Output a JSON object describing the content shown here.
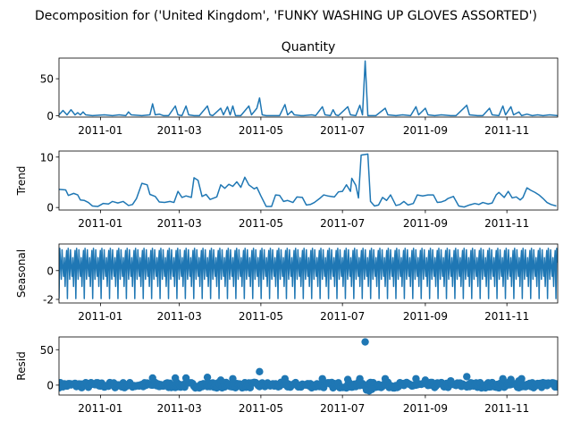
{
  "figure_title": "Decomposition for ('United Kingdom', 'FUNKY WASHING UP GLOVES ASSORTED')",
  "line_color": "#1f77b4",
  "chart_data": [
    {
      "type": "line",
      "panel": "observed",
      "title": "Quantity",
      "ylabel": "",
      "ylim": [
        -2,
        78
      ],
      "yticks": [
        0,
        50
      ],
      "xticks": [
        "2011-01",
        "2011-03",
        "2011-05",
        "2011-07",
        "2011-09",
        "2011-11"
      ],
      "xlim": [
        "2010-12-01",
        "2011-12-09"
      ],
      "grid": false,
      "series": [
        {
          "points": [
            [
              "2010-12-01",
              1
            ],
            [
              "2010-12-04",
              7
            ],
            [
              "2010-12-07",
              1
            ],
            [
              "2010-12-10",
              8
            ],
            [
              "2010-12-13",
              1
            ],
            [
              "2010-12-15",
              4
            ],
            [
              "2010-12-17",
              1
            ],
            [
              "2010-12-19",
              5
            ],
            [
              "2010-12-21",
              1
            ],
            [
              "2010-12-26",
              0
            ],
            [
              "2011-01-04",
              1
            ],
            [
              "2011-01-10",
              0
            ],
            [
              "2011-01-15",
              1
            ],
            [
              "2011-01-20",
              0
            ],
            [
              "2011-01-22",
              5
            ],
            [
              "2011-01-24",
              1
            ],
            [
              "2011-02-01",
              0
            ],
            [
              "2011-02-07",
              1
            ],
            [
              "2011-02-09",
              16
            ],
            [
              "2011-02-11",
              1
            ],
            [
              "2011-02-14",
              2
            ],
            [
              "2011-02-17",
              0
            ],
            [
              "2011-02-21",
              0
            ],
            [
              "2011-02-26",
              13
            ],
            [
              "2011-02-28",
              1
            ],
            [
              "2011-03-03",
              0
            ],
            [
              "2011-03-06",
              13
            ],
            [
              "2011-03-08",
              1
            ],
            [
              "2011-03-12",
              0
            ],
            [
              "2011-03-16",
              0
            ],
            [
              "2011-03-22",
              13
            ],
            [
              "2011-03-24",
              1
            ],
            [
              "2011-03-26",
              0
            ],
            [
              "2011-04-01",
              10
            ],
            [
              "2011-04-03",
              1
            ],
            [
              "2011-04-06",
              12
            ],
            [
              "2011-04-08",
              1
            ],
            [
              "2011-04-10",
              13
            ],
            [
              "2011-04-12",
              0
            ],
            [
              "2011-04-16",
              0
            ],
            [
              "2011-04-22",
              13
            ],
            [
              "2011-04-24",
              1
            ],
            [
              "2011-04-28",
              10
            ],
            [
              "2011-04-30",
              24
            ],
            [
              "2011-05-02",
              1
            ],
            [
              "2011-05-05",
              0
            ],
            [
              "2011-05-10",
              0
            ],
            [
              "2011-05-15",
              0
            ],
            [
              "2011-05-19",
              15
            ],
            [
              "2011-05-21",
              1
            ],
            [
              "2011-05-24",
              6
            ],
            [
              "2011-05-26",
              1
            ],
            [
              "2011-05-31",
              0
            ],
            [
              "2011-06-02",
              0
            ],
            [
              "2011-06-08",
              1
            ],
            [
              "2011-06-11",
              0
            ],
            [
              "2011-06-16",
              12
            ],
            [
              "2011-06-18",
              1
            ],
            [
              "2011-06-22",
              0
            ],
            [
              "2011-06-24",
              8
            ],
            [
              "2011-06-26",
              1
            ],
            [
              "2011-06-28",
              0
            ],
            [
              "2011-07-05",
              12
            ],
            [
              "2011-07-07",
              1
            ],
            [
              "2011-07-11",
              0
            ],
            [
              "2011-07-14",
              14
            ],
            [
              "2011-07-16",
              1
            ],
            [
              "2011-07-18",
              74
            ],
            [
              "2011-07-20",
              0
            ],
            [
              "2011-07-26",
              0
            ],
            [
              "2011-08-02",
              10
            ],
            [
              "2011-08-04",
              1
            ],
            [
              "2011-08-10",
              0
            ],
            [
              "2011-08-15",
              1
            ],
            [
              "2011-08-21",
              0
            ],
            [
              "2011-08-25",
              12
            ],
            [
              "2011-08-27",
              1
            ],
            [
              "2011-09-01",
              10
            ],
            [
              "2011-09-03",
              1
            ],
            [
              "2011-09-08",
              0
            ],
            [
              "2011-09-13",
              1
            ],
            [
              "2011-09-20",
              0
            ],
            [
              "2011-09-24",
              0
            ],
            [
              "2011-10-02",
              14
            ],
            [
              "2011-10-04",
              1
            ],
            [
              "2011-10-10",
              0
            ],
            [
              "2011-10-14",
              0
            ],
            [
              "2011-10-19",
              10
            ],
            [
              "2011-10-21",
              1
            ],
            [
              "2011-10-26",
              0
            ],
            [
              "2011-10-29",
              13
            ],
            [
              "2011-10-31",
              1
            ],
            [
              "2011-11-04",
              12
            ],
            [
              "2011-11-06",
              1
            ],
            [
              "2011-11-10",
              5
            ],
            [
              "2011-11-12",
              0
            ],
            [
              "2011-11-16",
              2
            ],
            [
              "2011-11-20",
              0
            ],
            [
              "2011-11-24",
              1
            ],
            [
              "2011-11-28",
              0
            ],
            [
              "2011-12-03",
              1
            ],
            [
              "2011-12-09",
              0
            ]
          ]
        }
      ]
    },
    {
      "type": "line",
      "panel": "trend",
      "title": "",
      "ylabel": "Trend",
      "ylim": [
        -0.5,
        11.2
      ],
      "yticks": [
        0,
        10
      ],
      "xticks": [
        "2011-01",
        "2011-03",
        "2011-05",
        "2011-07",
        "2011-09",
        "2011-11"
      ],
      "xlim": [
        "2010-12-01",
        "2011-12-09"
      ],
      "grid": false,
      "series": [
        {
          "points": [
            [
              "2010-12-01",
              3.6
            ],
            [
              "2010-12-06",
              3.5
            ],
            [
              "2010-12-08",
              2.4
            ],
            [
              "2010-12-12",
              2.8
            ],
            [
              "2010-12-15",
              2.5
            ],
            [
              "2010-12-17",
              1.5
            ],
            [
              "2010-12-20",
              1.4
            ],
            [
              "2010-12-23",
              1.0
            ],
            [
              "2010-12-26",
              0.3
            ],
            [
              "2010-12-30",
              0.2
            ],
            [
              "2011-01-03",
              0.8
            ],
            [
              "2011-01-07",
              0.7
            ],
            [
              "2011-01-10",
              1.2
            ],
            [
              "2011-01-14",
              0.9
            ],
            [
              "2011-01-18",
              1.2
            ],
            [
              "2011-01-22",
              0.4
            ],
            [
              "2011-01-25",
              0.6
            ],
            [
              "2011-01-28",
              1.8
            ],
            [
              "2011-02-01",
              4.8
            ],
            [
              "2011-02-05",
              4.5
            ],
            [
              "2011-02-07",
              2.6
            ],
            [
              "2011-02-11",
              2.2
            ],
            [
              "2011-02-14",
              1.1
            ],
            [
              "2011-02-18",
              1.0
            ],
            [
              "2011-02-22",
              1.2
            ],
            [
              "2011-02-25",
              1.0
            ],
            [
              "2011-02-28",
              3.2
            ],
            [
              "2011-03-03",
              2.0
            ],
            [
              "2011-03-06",
              2.3
            ],
            [
              "2011-03-10",
              2.0
            ],
            [
              "2011-03-12",
              5.9
            ],
            [
              "2011-03-15",
              5.4
            ],
            [
              "2011-03-18",
              2.2
            ],
            [
              "2011-03-21",
              2.6
            ],
            [
              "2011-03-24",
              1.6
            ],
            [
              "2011-03-26",
              1.8
            ],
            [
              "2011-03-29",
              2.1
            ],
            [
              "2011-04-01",
              4.5
            ],
            [
              "2011-04-04",
              3.8
            ],
            [
              "2011-04-07",
              4.6
            ],
            [
              "2011-04-10",
              4.2
            ],
            [
              "2011-04-13",
              5.1
            ],
            [
              "2011-04-16",
              4.0
            ],
            [
              "2011-04-19",
              6.0
            ],
            [
              "2011-04-22",
              4.5
            ],
            [
              "2011-04-26",
              3.7
            ],
            [
              "2011-04-28",
              4.0
            ],
            [
              "2011-05-01",
              2.3
            ],
            [
              "2011-05-05",
              0.2
            ],
            [
              "2011-05-09",
              0.2
            ],
            [
              "2011-05-12",
              2.5
            ],
            [
              "2011-05-15",
              2.4
            ],
            [
              "2011-05-18",
              1.2
            ],
            [
              "2011-05-21",
              1.4
            ],
            [
              "2011-05-25",
              1.0
            ],
            [
              "2011-05-28",
              2.1
            ],
            [
              "2011-06-01",
              2.0
            ],
            [
              "2011-06-04",
              0.5
            ],
            [
              "2011-06-07",
              0.6
            ],
            [
              "2011-06-10",
              1.0
            ],
            [
              "2011-06-14",
              1.8
            ],
            [
              "2011-06-17",
              2.5
            ],
            [
              "2011-06-20",
              2.3
            ],
            [
              "2011-06-25",
              2.1
            ],
            [
              "2011-06-28",
              3.1
            ],
            [
              "2011-07-01",
              3.2
            ],
            [
              "2011-07-04",
              4.5
            ],
            [
              "2011-07-07",
              3.2
            ],
            [
              "2011-07-08",
              5.8
            ],
            [
              "2011-07-11",
              4.4
            ],
            [
              "2011-07-13",
              1.9
            ],
            [
              "2011-07-15",
              10.4
            ],
            [
              "2011-07-20",
              10.6
            ],
            [
              "2011-07-22",
              1.2
            ],
            [
              "2011-07-25",
              0.3
            ],
            [
              "2011-07-28",
              0.5
            ],
            [
              "2011-07-31",
              2.0
            ],
            [
              "2011-08-03",
              1.4
            ],
            [
              "2011-08-06",
              2.5
            ],
            [
              "2011-08-10",
              0.4
            ],
            [
              "2011-08-13",
              0.6
            ],
            [
              "2011-08-16",
              1.2
            ],
            [
              "2011-08-19",
              0.5
            ],
            [
              "2011-08-23",
              0.8
            ],
            [
              "2011-08-26",
              2.5
            ],
            [
              "2011-08-30",
              2.3
            ],
            [
              "2011-09-03",
              2.5
            ],
            [
              "2011-09-07",
              2.5
            ],
            [
              "2011-09-10",
              1.0
            ],
            [
              "2011-09-13",
              1.1
            ],
            [
              "2011-09-16",
              1.4
            ],
            [
              "2011-09-18",
              1.8
            ],
            [
              "2011-09-22",
              2.2
            ],
            [
              "2011-09-26",
              0.3
            ],
            [
              "2011-09-30",
              0.1
            ],
            [
              "2011-10-04",
              0.5
            ],
            [
              "2011-10-08",
              0.8
            ],
            [
              "2011-10-11",
              0.6
            ],
            [
              "2011-10-14",
              1.0
            ],
            [
              "2011-10-18",
              0.7
            ],
            [
              "2011-10-21",
              0.9
            ],
            [
              "2011-10-24",
              2.5
            ],
            [
              "2011-10-26",
              3.0
            ],
            [
              "2011-10-30",
              2.0
            ],
            [
              "2011-11-02",
              3.2
            ],
            [
              "2011-11-05",
              1.9
            ],
            [
              "2011-11-08",
              2.1
            ],
            [
              "2011-11-11",
              1.5
            ],
            [
              "2011-11-13",
              2.0
            ],
            [
              "2011-11-16",
              3.9
            ],
            [
              "2011-11-19",
              3.4
            ],
            [
              "2011-11-22",
              3.0
            ],
            [
              "2011-11-25",
              2.5
            ],
            [
              "2011-11-28",
              1.8
            ],
            [
              "2011-12-01",
              1.0
            ],
            [
              "2011-12-04",
              0.6
            ],
            [
              "2011-12-08",
              0.3
            ]
          ]
        }
      ]
    },
    {
      "type": "line",
      "panel": "seasonal",
      "title": "",
      "ylabel": "Seasonal",
      "ylim": [
        -2.25,
        1.85
      ],
      "yticks": [
        -2,
        0
      ],
      "xticks": [
        "2011-01",
        "2011-03",
        "2011-05",
        "2011-07",
        "2011-09",
        "2011-11"
      ],
      "xlim": [
        "2010-12-01",
        "2011-12-09"
      ],
      "grid": false,
      "period_days": 6.3,
      "cycle_values": [
        -1.95,
        1.55,
        0.55,
        -0.6,
        1.45,
        0.25,
        -0.4,
        0.9,
        -1.1,
        0.6,
        1.4
      ]
    },
    {
      "type": "scatter",
      "panel": "resid",
      "title": "",
      "ylabel": "Resid",
      "ylim": [
        -14,
        68
      ],
      "yticks": [
        0,
        50
      ],
      "xticks": [
        "2011-01",
        "2011-03",
        "2011-05",
        "2011-07",
        "2011-09",
        "2011-11"
      ],
      "xlim": [
        "2010-12-01",
        "2011-12-09"
      ],
      "grid": false,
      "highlights": [
        [
          "2011-02-09",
          10
        ],
        [
          "2011-02-26",
          10
        ],
        [
          "2011-03-06",
          10
        ],
        [
          "2011-03-22",
          11
        ],
        [
          "2011-04-01",
          7
        ],
        [
          "2011-04-10",
          9
        ],
        [
          "2011-04-30",
          19
        ],
        [
          "2011-05-19",
          9
        ],
        [
          "2011-06-16",
          9
        ],
        [
          "2011-07-05",
          8
        ],
        [
          "2011-07-14",
          9
        ],
        [
          "2011-07-18",
          61
        ],
        [
          "2011-07-19",
          -7
        ],
        [
          "2011-07-21",
          -8
        ],
        [
          "2011-07-23",
          -6
        ],
        [
          "2011-08-02",
          9
        ],
        [
          "2011-08-25",
          9
        ],
        [
          "2011-09-01",
          7
        ],
        [
          "2011-09-20",
          6
        ],
        [
          "2011-10-02",
          12
        ],
        [
          "2011-10-29",
          9
        ],
        [
          "2011-11-04",
          8
        ],
        [
          "2011-11-10",
          6
        ],
        [
          "2011-11-12",
          9
        ]
      ]
    }
  ]
}
